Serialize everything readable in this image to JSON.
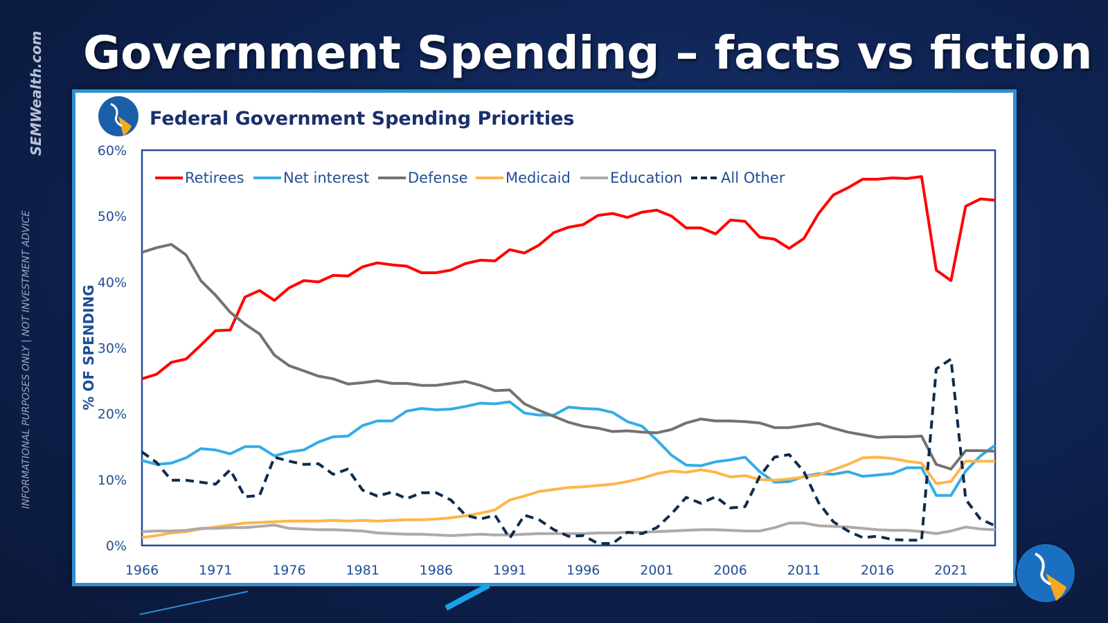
{
  "page": {
    "title": "Government Spending – facts vs fiction",
    "brand": "SEMWealth.com",
    "disclaimer": "INFORMATIONAL PURPOSES ONLY | NOT INVESTMENT ADVICE"
  },
  "colors": {
    "accent": "#2f8fd0",
    "background": "#0f2454"
  },
  "chart_data": {
    "type": "line",
    "title": "Federal Government Spending Priorities",
    "xlabel": "",
    "ylabel": "% OF SPENDING",
    "xlim": [
      1966,
      2024
    ],
    "ylim": [
      0,
      60
    ],
    "x_ticks": [
      "1966",
      "1971",
      "1976",
      "1981",
      "1986",
      "1991",
      "1996",
      "2001",
      "2006",
      "2011",
      "2016",
      "2021"
    ],
    "y_ticks": [
      "0%",
      "10%",
      "20%",
      "30%",
      "40%",
      "50%",
      "60%"
    ],
    "grid": false,
    "legend_position": "top",
    "x_start": 1966,
    "series": [
      {
        "name": "Retirees",
        "color": "#ff0000",
        "dash": false,
        "values": [
          25.3,
          26.0,
          27.8,
          28.3,
          30.4,
          32.6,
          32.7,
          37.7,
          38.7,
          37.2,
          39.1,
          40.2,
          40.0,
          41.0,
          40.9,
          42.3,
          42.9,
          42.6,
          42.4,
          41.4,
          41.4,
          41.8,
          42.8,
          43.3,
          43.2,
          44.9,
          44.4,
          45.6,
          47.5,
          48.3,
          48.7,
          50.1,
          50.4,
          49.8,
          50.6,
          50.9,
          50.0,
          48.2,
          48.2,
          47.3,
          49.4,
          49.2,
          46.8,
          46.5,
          45.1,
          46.6,
          50.4,
          53.2,
          54.3,
          55.6,
          55.6,
          55.8,
          55.7,
          56.0,
          41.8,
          40.2,
          51.5,
          52.6,
          52.4
        ]
      },
      {
        "name": "Net interest",
        "color": "#35ace6",
        "dash": false,
        "values": [
          12.9,
          12.3,
          12.5,
          13.3,
          14.7,
          14.5,
          13.9,
          15.0,
          15.0,
          13.6,
          14.2,
          14.5,
          15.7,
          16.5,
          16.6,
          18.2,
          18.9,
          18.9,
          20.4,
          20.8,
          20.6,
          20.7,
          21.1,
          21.6,
          21.5,
          21.8,
          20.1,
          19.8,
          19.8,
          21.0,
          20.8,
          20.7,
          20.2,
          18.8,
          18.1,
          16.0,
          13.7,
          12.2,
          12.1,
          12.7,
          13.0,
          13.4,
          11.2,
          9.6,
          9.7,
          10.5,
          10.9,
          10.8,
          11.2,
          10.5,
          10.7,
          10.9,
          11.8,
          11.8,
          7.6,
          7.6,
          11.3,
          13.6,
          15.2
        ]
      },
      {
        "name": "Defense",
        "color": "#767171",
        "dash": false,
        "values": [
          44.5,
          45.2,
          45.7,
          44.1,
          40.2,
          38.0,
          35.4,
          33.6,
          32.1,
          28.9,
          27.3,
          26.5,
          25.7,
          25.3,
          24.5,
          24.7,
          25.0,
          24.6,
          24.6,
          24.3,
          24.3,
          24.6,
          24.9,
          24.3,
          23.5,
          23.6,
          21.5,
          20.5,
          19.6,
          18.7,
          18.1,
          17.8,
          17.3,
          17.4,
          17.2,
          17.1,
          17.6,
          18.6,
          19.2,
          18.9,
          18.9,
          18.8,
          18.6,
          17.9,
          17.9,
          18.2,
          18.5,
          17.8,
          17.2,
          16.8,
          16.4,
          16.5,
          16.5,
          16.6,
          12.3,
          11.6,
          14.4,
          14.4,
          14.3
        ]
      },
      {
        "name": "Medicaid",
        "color": "#ffb54a",
        "dash": false,
        "values": [
          1.2,
          1.5,
          1.9,
          2.1,
          2.5,
          2.8,
          3.1,
          3.4,
          3.5,
          3.6,
          3.7,
          3.7,
          3.7,
          3.8,
          3.7,
          3.8,
          3.7,
          3.8,
          3.9,
          3.9,
          4.0,
          4.2,
          4.5,
          4.9,
          5.4,
          6.9,
          7.5,
          8.2,
          8.5,
          8.8,
          8.9,
          9.1,
          9.3,
          9.7,
          10.2,
          10.9,
          11.3,
          11.1,
          11.5,
          11.1,
          10.4,
          10.6,
          10.0,
          9.9,
          10.1,
          10.4,
          10.7,
          11.5,
          12.3,
          13.3,
          13.4,
          13.2,
          12.8,
          12.5,
          9.4,
          9.7,
          12.8,
          12.8,
          12.8
        ]
      },
      {
        "name": "Education",
        "color": "#aeaaaa",
        "dash": false,
        "values": [
          2.1,
          2.2,
          2.2,
          2.3,
          2.6,
          2.6,
          2.7,
          2.7,
          2.9,
          3.1,
          2.6,
          2.5,
          2.4,
          2.4,
          2.3,
          2.2,
          1.9,
          1.8,
          1.7,
          1.7,
          1.6,
          1.5,
          1.6,
          1.7,
          1.6,
          1.6,
          1.7,
          1.8,
          1.8,
          1.8,
          1.8,
          1.9,
          1.9,
          2.0,
          2.0,
          2.1,
          2.2,
          2.3,
          2.4,
          2.4,
          2.3,
          2.2,
          2.2,
          2.7,
          3.4,
          3.4,
          3.0,
          2.9,
          2.8,
          2.6,
          2.4,
          2.3,
          2.3,
          2.1,
          1.8,
          2.2,
          2.8,
          2.5,
          2.4
        ]
      },
      {
        "name": "All Other",
        "color": "#0f2b4d",
        "dash": true,
        "values": [
          14.2,
          12.6,
          9.9,
          9.9,
          9.6,
          9.3,
          11.5,
          7.4,
          7.6,
          13.4,
          12.8,
          12.3,
          12.4,
          10.8,
          11.6,
          8.4,
          7.5,
          8.1,
          7.1,
          8.0,
          8.0,
          6.9,
          4.6,
          4.0,
          4.6,
          1.1,
          4.6,
          3.9,
          2.4,
          1.4,
          1.5,
          0.3,
          0.3,
          2.0,
          1.8,
          2.7,
          4.8,
          7.3,
          6.4,
          7.4,
          5.7,
          5.9,
          10.5,
          13.4,
          13.8,
          11.2,
          6.5,
          3.6,
          2.2,
          1.2,
          1.4,
          0.9,
          0.8,
          0.8,
          26.8,
          28.3,
          7.0,
          4.0,
          3.0
        ]
      }
    ]
  }
}
